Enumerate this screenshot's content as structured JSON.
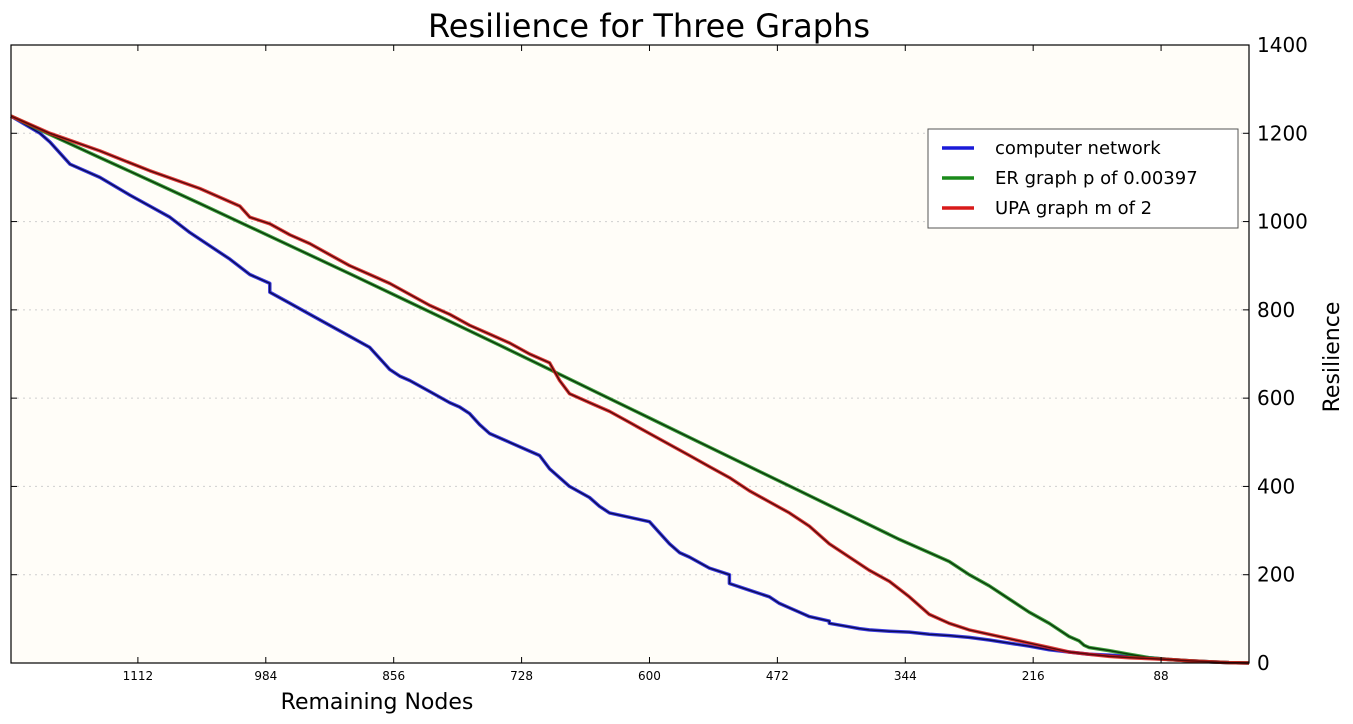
{
  "chart_data": {
    "type": "line",
    "title": "Resilience for Three Graphs",
    "xlabel": "Remaining Nodes",
    "ylabel": "Resilience",
    "x_axis_reversed": true,
    "xlim": [
      1239,
      0
    ],
    "ylim": [
      0,
      1400
    ],
    "x_ticks": [
      1112,
      984,
      856,
      728,
      600,
      472,
      344,
      216,
      88
    ],
    "y_ticks": [
      0,
      200,
      400,
      600,
      800,
      1000,
      1200,
      1400
    ],
    "y_axis_side": "right",
    "grid": "horizontal dotted",
    "legend_position": "upper-right",
    "background": "#fffdf8",
    "series": [
      {
        "name": "computer network",
        "color": "#1a1ad8",
        "x": [
          1239,
          1210,
          1200,
          1180,
          1150,
          1120,
          1100,
          1080,
          1060,
          1040,
          1020,
          1000,
          980,
          980,
          960,
          940,
          920,
          900,
          880,
          870,
          860,
          850,
          840,
          820,
          800,
          790,
          780,
          770,
          760,
          740,
          720,
          710,
          700,
          680,
          660,
          650,
          640,
          620,
          600,
          590,
          580,
          570,
          560,
          540,
          520,
          520,
          500,
          480,
          470,
          460,
          450,
          440,
          420,
          420,
          400,
          390,
          380,
          360,
          340,
          320,
          300,
          280,
          260,
          240,
          220,
          200,
          180,
          160,
          140,
          120,
          100,
          80,
          60,
          40,
          20,
          0
        ],
        "y": [
          1239,
          1200,
          1180,
          1130,
          1100,
          1060,
          1035,
          1010,
          975,
          945,
          915,
          880,
          860,
          840,
          815,
          790,
          765,
          740,
          715,
          690,
          665,
          650,
          640,
          615,
          590,
          580,
          565,
          540,
          520,
          500,
          480,
          470,
          440,
          400,
          375,
          355,
          340,
          330,
          320,
          295,
          270,
          250,
          240,
          215,
          200,
          180,
          165,
          150,
          135,
          125,
          115,
          105,
          95,
          90,
          82,
          78,
          75,
          72,
          70,
          65,
          62,
          58,
          52,
          45,
          38,
          30,
          25,
          20,
          18,
          15,
          12,
          8,
          5,
          3,
          1,
          0
        ]
      },
      {
        "name": "ER graph p of 0.00397",
        "color": "#1a8a1a",
        "x": [
          1239,
          1200,
          1150,
          1100,
          1050,
          1000,
          950,
          900,
          850,
          800,
          750,
          700,
          650,
          600,
          550,
          500,
          450,
          400,
          350,
          320,
          300,
          280,
          260,
          240,
          220,
          200,
          180,
          170,
          165,
          160,
          140,
          120,
          100,
          80,
          60,
          40,
          20,
          0
        ],
        "y": [
          1239,
          1197,
          1145,
          1093,
          1041,
          988,
          935,
          882,
          828,
          774,
          720,
          665,
          610,
          555,
          500,
          445,
          390,
          335,
          280,
          250,
          230,
          200,
          175,
          145,
          115,
          90,
          60,
          50,
          40,
          35,
          28,
          20,
          12,
          8,
          5,
          3,
          1,
          0
        ]
      },
      {
        "name": "UPA graph m of 2",
        "color": "#d81a1a",
        "x": [
          1239,
          1200,
          1150,
          1100,
          1050,
          1010,
          1000,
          980,
          960,
          940,
          920,
          900,
          880,
          860,
          840,
          820,
          800,
          780,
          760,
          740,
          720,
          700,
          690,
          680,
          660,
          640,
          620,
          600,
          580,
          560,
          540,
          520,
          500,
          480,
          460,
          440,
          420,
          400,
          380,
          360,
          340,
          320,
          300,
          280,
          260,
          240,
          220,
          200,
          180,
          160,
          140,
          120,
          100,
          80,
          60,
          40,
          20,
          0
        ],
        "y": [
          1239,
          1200,
          1160,
          1115,
          1075,
          1035,
          1010,
          995,
          970,
          950,
          925,
          900,
          880,
          860,
          835,
          810,
          790,
          765,
          745,
          725,
          700,
          680,
          640,
          610,
          590,
          570,
          545,
          520,
          495,
          470,
          445,
          420,
          390,
          365,
          340,
          310,
          270,
          240,
          210,
          185,
          150,
          110,
          90,
          75,
          65,
          55,
          45,
          35,
          25,
          20,
          15,
          12,
          10,
          8,
          5,
          3,
          1,
          0
        ]
      }
    ]
  }
}
